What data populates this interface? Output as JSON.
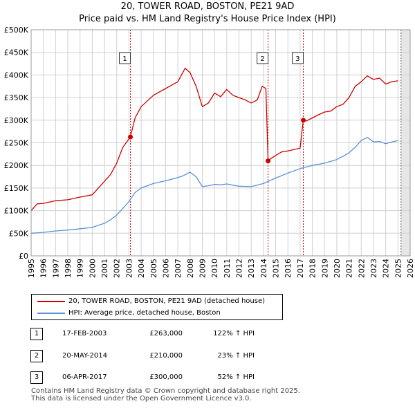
{
  "header": {
    "title_line1": "20, TOWER ROAD, BOSTON, PE21 9AD",
    "title_line2": "Price paid vs. HM Land Registry's House Price Index (HPI)"
  },
  "chart_data": {
    "type": "line",
    "x_range": [
      1995,
      2026
    ],
    "ylim": [
      0,
      500000
    ],
    "y_ticks": [
      0,
      50000,
      100000,
      150000,
      200000,
      250000,
      300000,
      350000,
      400000,
      450000,
      500000
    ],
    "y_tick_labels": [
      "£0",
      "£50K",
      "£100K",
      "£150K",
      "£200K",
      "£250K",
      "£300K",
      "£350K",
      "£400K",
      "£450K",
      "£500K"
    ],
    "x_ticks": [
      1995,
      1996,
      1997,
      1998,
      1999,
      2000,
      2001,
      2002,
      2003,
      2004,
      2005,
      2006,
      2007,
      2008,
      2009,
      2010,
      2011,
      2012,
      2013,
      2014,
      2015,
      2016,
      2017,
      2018,
      2019,
      2020,
      2021,
      2022,
      2023,
      2024,
      2025,
      2026
    ],
    "x_tick_labels": [
      "1995",
      "1996",
      "1997",
      "1998",
      "1999",
      "2000",
      "2001",
      "2002",
      "2003",
      "2004",
      "2005",
      "2006",
      "2007",
      "2008",
      "2009",
      "2010",
      "2011",
      "2012",
      "2013",
      "2014",
      "2015",
      "2016",
      "2017",
      "2018",
      "2019",
      "2020",
      "2021",
      "2022",
      "2023",
      "2024",
      "2025",
      "2026"
    ],
    "grid": true,
    "projection_start": 2025.25,
    "series": [
      {
        "name": "20, TOWER ROAD, BOSTON, PE21 9AD (detached house)",
        "color": "#cc0000",
        "x": [
          1995.0,
          1995.5,
          1996.0,
          1997.0,
          1998.0,
          1999.0,
          2000.0,
          2001.0,
          2001.5,
          2002.0,
          2002.5,
          2003.12,
          2003.5,
          2004.0,
          2005.0,
          2006.0,
          2007.0,
          2007.6,
          2008.0,
          2008.5,
          2009.0,
          2009.5,
          2010.0,
          2010.5,
          2011.0,
          2011.5,
          2012.0,
          2012.5,
          2013.0,
          2013.5,
          2013.9,
          2014.2,
          2014.38,
          2014.6,
          2015.0,
          2015.5,
          2016.0,
          2016.5,
          2017.0,
          2017.26,
          2017.5,
          2018.0,
          2018.5,
          2019.0,
          2019.5,
          2020.0,
          2020.5,
          2021.0,
          2021.5,
          2022.0,
          2022.5,
          2023.0,
          2023.5,
          2024.0,
          2024.5,
          2025.0
        ],
        "values": [
          100000,
          115000,
          116000,
          122000,
          124000,
          130000,
          135000,
          165000,
          180000,
          205000,
          240000,
          263000,
          305000,
          330000,
          355000,
          370000,
          385000,
          415000,
          405000,
          375000,
          330000,
          338000,
          360000,
          352000,
          368000,
          355000,
          350000,
          345000,
          338000,
          345000,
          375000,
          370000,
          210000,
          215000,
          222000,
          230000,
          232000,
          235000,
          238000,
          300000,
          298000,
          305000,
          312000,
          318000,
          320000,
          330000,
          335000,
          350000,
          375000,
          385000,
          398000,
          390000,
          393000,
          380000,
          385000,
          387000
        ]
      },
      {
        "name": "HPI: Average price, detached house, Boston",
        "color": "#5b8fd6",
        "x": [
          1995.0,
          1996.0,
          1997.0,
          1998.0,
          1999.0,
          2000.0,
          2001.0,
          2001.5,
          2002.0,
          2002.5,
          2003.0,
          2003.5,
          2004.0,
          2005.0,
          2006.0,
          2007.0,
          2007.5,
          2008.0,
          2008.5,
          2009.0,
          2009.5,
          2010.0,
          2010.5,
          2011.0,
          2012.0,
          2013.0,
          2014.0,
          2015.0,
          2016.0,
          2017.0,
          2018.0,
          2019.0,
          2020.0,
          2020.5,
          2021.0,
          2021.5,
          2022.0,
          2022.5,
          2023.0,
          2023.5,
          2024.0,
          2024.5,
          2025.0
        ],
        "values": [
          50000,
          52000,
          55000,
          57000,
          60000,
          63000,
          72000,
          80000,
          90000,
          105000,
          120000,
          140000,
          150000,
          160000,
          166000,
          173000,
          178000,
          185000,
          175000,
          153000,
          155000,
          158000,
          157000,
          159000,
          154000,
          153000,
          160000,
          172000,
          183000,
          193000,
          200000,
          205000,
          213000,
          220000,
          228000,
          240000,
          255000,
          262000,
          252000,
          253000,
          248000,
          252000,
          255000
        ]
      }
    ],
    "sale_markers": [
      {
        "label": "1",
        "x": 2003.12,
        "value": 263000
      },
      {
        "label": "2",
        "x": 2014.38,
        "value": 210000
      },
      {
        "label": "3",
        "x": 2017.26,
        "value": 300000
      }
    ]
  },
  "legend": {
    "property_label": "20, TOWER ROAD, BOSTON, PE21 9AD (detached house)",
    "hpi_label": "HPI: Average price, detached house, Boston",
    "property_color": "#cc0000",
    "hpi_color": "#5b8fd6"
  },
  "sales": [
    {
      "num": "1",
      "date": "17-FEB-2003",
      "price": "£263,000",
      "hpi_change": "122% ↑ HPI"
    },
    {
      "num": "2",
      "date": "20-MAY-2014",
      "price": "£210,000",
      "hpi_change": "23% ↑ HPI"
    },
    {
      "num": "3",
      "date": "06-APR-2017",
      "price": "£300,000",
      "hpi_change": "52% ↑ HPI"
    }
  ],
  "footer": {
    "line1": "Contains HM Land Registry data © Crown copyright and database right 2025.",
    "line2": "This data is licensed under the Open Government Licence v3.0."
  }
}
